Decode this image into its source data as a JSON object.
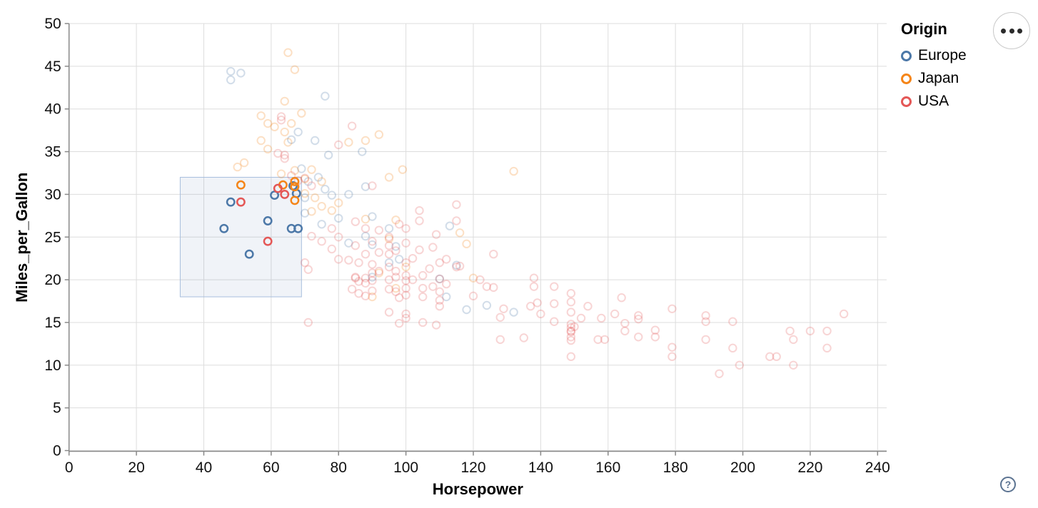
{
  "chart_data": {
    "type": "scatter",
    "title": "",
    "xlabel": "Horsepower",
    "ylabel": "Miles_per_Gallon",
    "xlim": [
      0,
      240
    ],
    "ylim": [
      0,
      50
    ],
    "x_ticks": [
      0,
      20,
      40,
      60,
      80,
      100,
      120,
      140,
      160,
      180,
      200,
      220,
      240
    ],
    "y_ticks": [
      0,
      5,
      10,
      15,
      20,
      25,
      30,
      35,
      40,
      45,
      50
    ],
    "grid": true,
    "legend_title": "Origin",
    "legend_position": "top-right",
    "point_style": "open-circle",
    "unselected_opacity": 0.25,
    "brush_selection": {
      "type": "interval",
      "x": [
        33,
        69
      ],
      "y": [
        18,
        32
      ],
      "fill": "#6b8ebf",
      "fill_opacity": 0.1,
      "stroke": "#a8bedd"
    },
    "series": [
      {
        "name": "Europe",
        "color": "#4c78a8",
        "selected_points": [
          [
            46,
            26
          ],
          [
            48,
            29.1
          ],
          [
            53.5,
            23
          ],
          [
            59,
            26.9
          ],
          [
            66,
            26
          ],
          [
            68,
            26
          ],
          [
            61,
            29.9
          ],
          [
            66.5,
            31
          ],
          [
            67.5,
            30.1
          ]
        ],
        "points": [
          [
            48,
            44.4
          ],
          [
            48,
            43.4
          ],
          [
            51,
            44.2
          ],
          [
            76,
            41.5
          ],
          [
            68,
            37.3
          ],
          [
            66,
            36.4
          ],
          [
            73,
            36.3
          ],
          [
            77,
            34.6
          ],
          [
            87,
            35
          ],
          [
            69,
            33
          ],
          [
            74,
            32
          ],
          [
            71,
            31.5
          ],
          [
            76,
            30.6
          ],
          [
            70,
            29.6
          ],
          [
            78,
            29.9
          ],
          [
            83,
            30
          ],
          [
            88,
            30.9
          ],
          [
            70,
            27.8
          ],
          [
            75,
            26.5
          ],
          [
            80,
            27.2
          ],
          [
            90,
            27.4
          ],
          [
            88,
            25.1
          ],
          [
            95,
            26
          ],
          [
            113,
            26.3
          ],
          [
            83,
            24.3
          ],
          [
            90,
            24.1
          ],
          [
            97,
            23.9
          ],
          [
            95,
            22
          ],
          [
            98,
            22.4
          ],
          [
            115,
            21.7
          ],
          [
            110,
            20.1
          ],
          [
            90,
            20.3
          ],
          [
            112,
            18
          ],
          [
            118,
            16.5
          ],
          [
            124,
            17
          ],
          [
            132,
            16.2
          ]
        ]
      },
      {
        "name": "Japan",
        "color": "#f58518",
        "selected_points": [
          [
            51,
            31.1
          ],
          [
            63.5,
            31.1
          ],
          [
            67,
            31.5
          ],
          [
            67,
            30.9
          ],
          [
            67,
            29.3
          ]
        ],
        "points": [
          [
            65,
            46.6
          ],
          [
            67,
            44.6
          ],
          [
            64,
            40.9
          ],
          [
            69,
            39.5
          ],
          [
            57,
            39.2
          ],
          [
            59,
            38.3
          ],
          [
            61,
            37.9
          ],
          [
            66,
            38.3
          ],
          [
            64,
            37.3
          ],
          [
            65,
            36.1
          ],
          [
            57,
            36.3
          ],
          [
            59,
            35.3
          ],
          [
            83,
            36.1
          ],
          [
            88,
            36.3
          ],
          [
            92,
            37
          ],
          [
            99,
            32.9
          ],
          [
            95,
            32
          ],
          [
            132,
            32.7
          ],
          [
            50,
            33.2
          ],
          [
            52,
            33.7
          ],
          [
            63,
            32.4
          ],
          [
            67,
            32.8
          ],
          [
            70,
            31.8
          ],
          [
            72,
            32.9
          ],
          [
            75,
            31.5
          ],
          [
            70,
            30.1
          ],
          [
            73,
            29.6
          ],
          [
            75,
            28.6
          ],
          [
            72,
            28
          ],
          [
            80,
            29
          ],
          [
            78,
            28.1
          ],
          [
            88,
            27.1
          ],
          [
            97,
            27
          ],
          [
            116,
            25.5
          ],
          [
            118,
            24.2
          ],
          [
            95,
            24.8
          ],
          [
            100,
            21.5
          ],
          [
            92,
            20.8
          ],
          [
            97,
            19
          ],
          [
            90,
            18
          ],
          [
            120,
            20.2
          ]
        ]
      },
      {
        "name": "USA",
        "color": "#e45756",
        "selected_points": [
          [
            51,
            29.1
          ],
          [
            62,
            30.7
          ],
          [
            64,
            30
          ],
          [
            59,
            24.5
          ]
        ],
        "points": [
          [
            63,
            39.1
          ],
          [
            63,
            38.7
          ],
          [
            84,
            38
          ],
          [
            80,
            35.8
          ],
          [
            62,
            34.8
          ],
          [
            64,
            34.6
          ],
          [
            64,
            34.2
          ],
          [
            66,
            32.2
          ],
          [
            70,
            31.9
          ],
          [
            68,
            31.6
          ],
          [
            72,
            31
          ],
          [
            90,
            31
          ],
          [
            104,
            28.1
          ],
          [
            104,
            26.9
          ],
          [
            115,
            28.8
          ],
          [
            115,
            26.9
          ],
          [
            109,
            25.3
          ],
          [
            104,
            23.5
          ],
          [
            108,
            23.8
          ],
          [
            78,
            26
          ],
          [
            80,
            25
          ],
          [
            85,
            26.8
          ],
          [
            88,
            26
          ],
          [
            92,
            25.8
          ],
          [
            95,
            25
          ],
          [
            98,
            26.5
          ],
          [
            100,
            24.3
          ],
          [
            85,
            24
          ],
          [
            90,
            24.5
          ],
          [
            95,
            24
          ],
          [
            100,
            26
          ],
          [
            88,
            23
          ],
          [
            92,
            23.2
          ],
          [
            97,
            23.4
          ],
          [
            75,
            24.5
          ],
          [
            72,
            25.1
          ],
          [
            78,
            23.6
          ],
          [
            80,
            22.4
          ],
          [
            83,
            22.3
          ],
          [
            86,
            22
          ],
          [
            70,
            22
          ],
          [
            71,
            21.2
          ],
          [
            85,
            20.3
          ],
          [
            85,
            20.2
          ],
          [
            86,
            19.8
          ],
          [
            88,
            20.2
          ],
          [
            88,
            19.6
          ],
          [
            90,
            19.9
          ],
          [
            90,
            20.8
          ],
          [
            92,
            21
          ],
          [
            95,
            20
          ],
          [
            95,
            21.5
          ],
          [
            97,
            21
          ],
          [
            97,
            20.3
          ],
          [
            100,
            20.5
          ],
          [
            100,
            19.9
          ],
          [
            100,
            19
          ],
          [
            102,
            20
          ],
          [
            105,
            20.5
          ],
          [
            105,
            19
          ],
          [
            107,
            21.3
          ],
          [
            108,
            19.2
          ],
          [
            110,
            20.1
          ],
          [
            110,
            18.6
          ],
          [
            112,
            19.5
          ],
          [
            112,
            22.4
          ],
          [
            115,
            21.5
          ],
          [
            110,
            22
          ],
          [
            95,
            23
          ],
          [
            100,
            22
          ],
          [
            102,
            22.5
          ],
          [
            90,
            21.8
          ],
          [
            84,
            18.9
          ],
          [
            86,
            18.4
          ],
          [
            88,
            18.1
          ],
          [
            90,
            18.7
          ],
          [
            95,
            18.9
          ],
          [
            97,
            18.6
          ],
          [
            100,
            18.2
          ],
          [
            105,
            18
          ],
          [
            110,
            17.6
          ],
          [
            98,
            17.9
          ],
          [
            71,
            15
          ],
          [
            95,
            16.2
          ],
          [
            100,
            16
          ],
          [
            100,
            15.5
          ],
          [
            105,
            15
          ],
          [
            110,
            16.9
          ],
          [
            98,
            14.9
          ],
          [
            109,
            14.7
          ],
          [
            116,
            21.6
          ],
          [
            120,
            18.1
          ],
          [
            122,
            20
          ],
          [
            124,
            19.2
          ],
          [
            126,
            19.1
          ],
          [
            126,
            23
          ],
          [
            129,
            16.6
          ],
          [
            128,
            15.6
          ],
          [
            128,
            13
          ],
          [
            135,
            13.2
          ],
          [
            137,
            16.9
          ],
          [
            139,
            17.3
          ],
          [
            140,
            16
          ],
          [
            138,
            20.2
          ],
          [
            138,
            19.2
          ],
          [
            144,
            17.2
          ],
          [
            144,
            15.1
          ],
          [
            144,
            19.2
          ],
          [
            149,
            18.4
          ],
          [
            149,
            17.4
          ],
          [
            149,
            16.2
          ],
          [
            149,
            14.8
          ],
          [
            149,
            14.4
          ],
          [
            149,
            14
          ],
          [
            149,
            13.9
          ],
          [
            149,
            13.3
          ],
          [
            149,
            12.9
          ],
          [
            149,
            11
          ],
          [
            150,
            14.5
          ],
          [
            152,
            15.5
          ],
          [
            154,
            16.9
          ],
          [
            157,
            13
          ],
          [
            159,
            13
          ],
          [
            158,
            15.5
          ],
          [
            162,
            16
          ],
          [
            164,
            17.9
          ],
          [
            165,
            14.9
          ],
          [
            165,
            14
          ],
          [
            169,
            15.8
          ],
          [
            169,
            15.4
          ],
          [
            169,
            13.3
          ],
          [
            174,
            14.1
          ],
          [
            174,
            13.3
          ],
          [
            179,
            16.6
          ],
          [
            179,
            12.1
          ],
          [
            179,
            11
          ],
          [
            189,
            15.8
          ],
          [
            189,
            15.1
          ],
          [
            189,
            13
          ],
          [
            193,
            9
          ],
          [
            197,
            15.1
          ],
          [
            197,
            12
          ],
          [
            199,
            10
          ],
          [
            208,
            11
          ],
          [
            210,
            11
          ],
          [
            214,
            14
          ],
          [
            215,
            13
          ],
          [
            215,
            10
          ],
          [
            220,
            14
          ],
          [
            225,
            14
          ],
          [
            225,
            12
          ],
          [
            230,
            16
          ]
        ]
      }
    ]
  },
  "legend": {
    "title": "Origin",
    "entries": [
      {
        "label": "Europe",
        "color": "#4c78a8"
      },
      {
        "label": "Japan",
        "color": "#f58518"
      },
      {
        "label": "USA",
        "color": "#e45756"
      }
    ]
  },
  "controls": {
    "menu_button": {
      "icon": "ellipsis-icon",
      "dots": 3
    },
    "help_button": {
      "label": "?"
    }
  },
  "style": {
    "grid_color": "#dddddd",
    "axis_color": "#888888",
    "label_color": "#111111"
  }
}
